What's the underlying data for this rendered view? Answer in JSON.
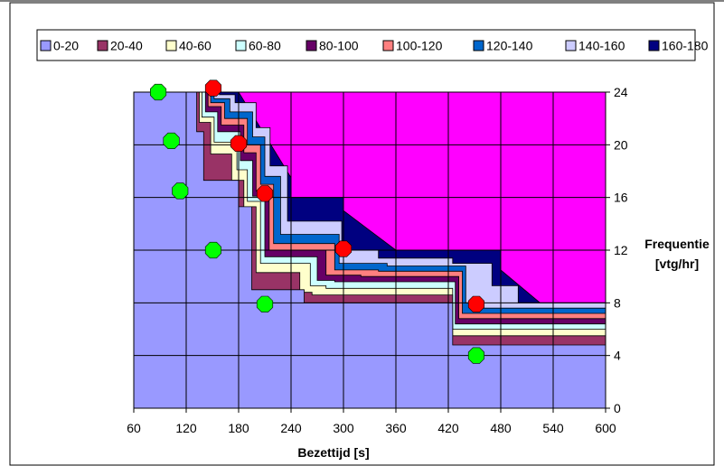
{
  "chart_data": {
    "type": "area",
    "title": "",
    "xlabel": "Bezettijd [s]",
    "ylabel": "Frequentie [vtg/hr]",
    "ylabel_lines": [
      "Frequentie",
      "[vtg/hr]"
    ],
    "xlim": [
      60,
      600
    ],
    "ylim": [
      0,
      24
    ],
    "x_ticks": [
      "60",
      "120",
      "180",
      "240",
      "300",
      "360",
      "420",
      "480",
      "540",
      "600"
    ],
    "y_ticks": [
      "0",
      "4",
      "8",
      "12",
      "16",
      "20",
      "24"
    ],
    "grid": true,
    "legend_position": "top",
    "background_color": "#ff00ff",
    "legend": [
      {
        "label": "0-20",
        "color": "#9999ff"
      },
      {
        "label": "20-40",
        "color": "#993366"
      },
      {
        "label": "40-60",
        "color": "#ffffcc"
      },
      {
        "label": "60-80",
        "color": "#ccffff"
      },
      {
        "label": "80-100",
        "color": "#660066"
      },
      {
        "label": "100-120",
        "color": "#ff8080"
      },
      {
        "label": "120-140",
        "color": "#0066cc"
      },
      {
        "label": "140-160",
        "color": "#ccccff"
      },
      {
        "label": "160-180",
        "color": "#000080"
      }
    ],
    "bands": [
      {
        "name": "0-20",
        "color": "#9999ff",
        "points": [
          [
            60,
            24
          ],
          [
            132,
            24
          ],
          [
            132,
            21
          ],
          [
            140,
            21
          ],
          [
            140,
            17.3
          ],
          [
            180,
            17.3
          ],
          [
            180,
            15.3
          ],
          [
            195,
            15.3
          ],
          [
            195,
            9
          ],
          [
            255,
            9
          ],
          [
            255,
            8
          ],
          [
            425,
            8
          ],
          [
            425,
            4.8
          ],
          [
            600,
            4.8
          ]
        ]
      },
      {
        "name": "20-40",
        "color": "#993366",
        "points": [
          [
            60,
            24
          ],
          [
            135,
            24
          ],
          [
            135,
            21.7
          ],
          [
            148,
            21.7
          ],
          [
            148,
            19.3
          ],
          [
            172,
            19.3
          ],
          [
            172,
            17.3
          ],
          [
            186,
            17.3
          ],
          [
            186,
            15.3
          ],
          [
            200,
            15.3
          ],
          [
            200,
            10.3
          ],
          [
            250,
            10.3
          ],
          [
            250,
            8.8
          ],
          [
            264,
            8.8
          ],
          [
            264,
            8.6
          ],
          [
            425,
            8.6
          ],
          [
            425,
            5.5
          ],
          [
            600,
            5.5
          ]
        ]
      },
      {
        "name": "40-60",
        "color": "#ffffcc",
        "points": [
          [
            60,
            24
          ],
          [
            138,
            24
          ],
          [
            138,
            22.1
          ],
          [
            152,
            22.1
          ],
          [
            152,
            20.2
          ],
          [
            178,
            20.2
          ],
          [
            178,
            18.1
          ],
          [
            190,
            18.1
          ],
          [
            190,
            15.7
          ],
          [
            205,
            15.7
          ],
          [
            205,
            11
          ],
          [
            262,
            11
          ],
          [
            262,
            9.3
          ],
          [
            280,
            9.3
          ],
          [
            280,
            9.1
          ],
          [
            425,
            9.1
          ],
          [
            425,
            6
          ],
          [
            600,
            6
          ]
        ]
      },
      {
        "name": "60-80",
        "color": "#ccffff",
        "points": [
          [
            60,
            24
          ],
          [
            142,
            24
          ],
          [
            142,
            22.5
          ],
          [
            156,
            22.5
          ],
          [
            156,
            21
          ],
          [
            182,
            21
          ],
          [
            182,
            18.8
          ],
          [
            196,
            18.8
          ],
          [
            196,
            16.1
          ],
          [
            210,
            16.1
          ],
          [
            210,
            11.5
          ],
          [
            270,
            11.5
          ],
          [
            270,
            9.7
          ],
          [
            290,
            9.7
          ],
          [
            290,
            9.6
          ],
          [
            428,
            9.6
          ],
          [
            428,
            6.4
          ],
          [
            600,
            6.4
          ]
        ]
      },
      {
        "name": "80-100",
        "color": "#660066",
        "points": [
          [
            60,
            24
          ],
          [
            145,
            24
          ],
          [
            145,
            22.9
          ],
          [
            160,
            22.9
          ],
          [
            160,
            21.5
          ],
          [
            186,
            21.5
          ],
          [
            186,
            19.4
          ],
          [
            200,
            19.4
          ],
          [
            200,
            16.5
          ],
          [
            215,
            16.5
          ],
          [
            215,
            12
          ],
          [
            280,
            12
          ],
          [
            280,
            10.1
          ],
          [
            320,
            10.1
          ],
          [
            320,
            10
          ],
          [
            432,
            10
          ],
          [
            432,
            6.8
          ],
          [
            600,
            6.8
          ]
        ]
      },
      {
        "name": "100-120",
        "color": "#ff8080",
        "points": [
          [
            60,
            24
          ],
          [
            148,
            24
          ],
          [
            148,
            23.2
          ],
          [
            164,
            23.2
          ],
          [
            164,
            22
          ],
          [
            190,
            22
          ],
          [
            190,
            20
          ],
          [
            205,
            20
          ],
          [
            205,
            17
          ],
          [
            220,
            17
          ],
          [
            220,
            12.5
          ],
          [
            290,
            12.5
          ],
          [
            290,
            10.5
          ],
          [
            340,
            10.5
          ],
          [
            340,
            10.4
          ],
          [
            436,
            10.4
          ],
          [
            436,
            7.2
          ],
          [
            600,
            7.2
          ]
        ]
      },
      {
        "name": "120-140",
        "color": "#0066cc",
        "points": [
          [
            60,
            24
          ],
          [
            152,
            24
          ],
          [
            152,
            23.5
          ],
          [
            170,
            23.5
          ],
          [
            170,
            22.5
          ],
          [
            196,
            22.5
          ],
          [
            196,
            20.6
          ],
          [
            210,
            20.6
          ],
          [
            210,
            17.6
          ],
          [
            228,
            17.6
          ],
          [
            228,
            13.2
          ],
          [
            295,
            13.2
          ],
          [
            295,
            11
          ],
          [
            350,
            11
          ],
          [
            350,
            10.8
          ],
          [
            440,
            10.8
          ],
          [
            440,
            8
          ],
          [
            455,
            8
          ],
          [
            455,
            7.6
          ],
          [
            600,
            7.6
          ]
        ]
      },
      {
        "name": "140-160",
        "color": "#ccccff",
        "points": [
          [
            60,
            24
          ],
          [
            158,
            24
          ],
          [
            158,
            23.8
          ],
          [
            176,
            23.8
          ],
          [
            176,
            23.2
          ],
          [
            200,
            23.2
          ],
          [
            200,
            21.3
          ],
          [
            216,
            21.3
          ],
          [
            216,
            18.4
          ],
          [
            236,
            18.4
          ],
          [
            236,
            14.2
          ],
          [
            298,
            14.2
          ],
          [
            298,
            12
          ],
          [
            340,
            12
          ],
          [
            340,
            11.4
          ],
          [
            425,
            11.4
          ],
          [
            425,
            11
          ],
          [
            470,
            11
          ],
          [
            470,
            9.3
          ],
          [
            500,
            9.3
          ],
          [
            500,
            8
          ],
          [
            600,
            8
          ]
        ]
      },
      {
        "name": "160-180",
        "color": "#000080",
        "points": [
          [
            60,
            24
          ],
          [
            180,
            24
          ],
          [
            240,
            17.5
          ],
          [
            240,
            16
          ],
          [
            300,
            16
          ],
          [
            300,
            15
          ],
          [
            360,
            12
          ],
          [
            480,
            12
          ],
          [
            480,
            10.5
          ],
          [
            525,
            8
          ],
          [
            600,
            8
          ]
        ]
      }
    ],
    "markers": [
      {
        "name": "green",
        "color": "#00ff00",
        "points": [
          [
            88,
            24
          ],
          [
            103,
            20.3
          ],
          [
            113,
            16.5
          ],
          [
            151,
            12
          ],
          [
            210,
            7.9
          ],
          [
            452,
            4
          ]
        ]
      },
      {
        "name": "red",
        "color": "#ff0000",
        "points": [
          [
            151,
            24.3
          ],
          [
            180,
            20.1
          ],
          [
            210,
            16.3
          ],
          [
            300,
            12.1
          ],
          [
            452,
            7.9
          ]
        ]
      }
    ]
  }
}
